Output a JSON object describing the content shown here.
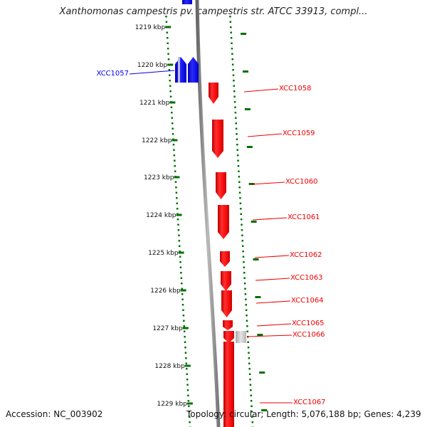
{
  "title": "Xanthomonas campestris pv. campestris str. ATCC 33913, compl...",
  "footer": {
    "accession": "Accession: NC_003902",
    "topology": "Topology: circular; Length: 5,076,188 bp; Genes: 4,239"
  },
  "ticks": [
    "1219 kbp",
    "1220 kbp",
    "1221 kbp",
    "1222 kbp",
    "1223 kbp",
    "1224 kbp",
    "1225 kbp",
    "1226 kbp",
    "1227 kbp",
    "1228 kbp",
    "1229 kbp"
  ],
  "colors": {
    "forward": "#0000ee",
    "reverse": "#ee0000",
    "other": "#c0c0c0",
    "ruler": "#007000",
    "backbone": "#888888"
  },
  "genes": [
    {
      "label": "XCC1057",
      "strand": "forward",
      "color": "#0000ee",
      "label_color": "#0000ee"
    },
    {
      "label": "XCC1058",
      "strand": "reverse",
      "color": "#ee0000",
      "label_color": "#ee0000"
    },
    {
      "label": "XCC1059",
      "strand": "reverse",
      "color": "#ee0000",
      "label_color": "#ee0000"
    },
    {
      "label": "XCC1060",
      "strand": "reverse",
      "color": "#ee0000",
      "label_color": "#ee0000"
    },
    {
      "label": "XCC1061",
      "strand": "reverse",
      "color": "#ee0000",
      "label_color": "#ee0000"
    },
    {
      "label": "XCC1062",
      "strand": "reverse",
      "color": "#ee0000",
      "label_color": "#ee0000"
    },
    {
      "label": "XCC1063",
      "strand": "reverse",
      "color": "#ee0000",
      "label_color": "#ee0000"
    },
    {
      "label": "XCC1064",
      "strand": "reverse",
      "color": "#ee0000",
      "label_color": "#ee0000"
    },
    {
      "label": "XCC1065",
      "strand": "reverse",
      "color": "#ee0000",
      "label_color": "#ee0000"
    },
    {
      "label": "XCC1066",
      "strand": "reverse",
      "color": "#c0c0c0",
      "label_color": "#ee0000"
    },
    {
      "label": "XCC1067",
      "strand": "reverse",
      "color": "#ee0000",
      "label_color": "#ee0000"
    }
  ]
}
